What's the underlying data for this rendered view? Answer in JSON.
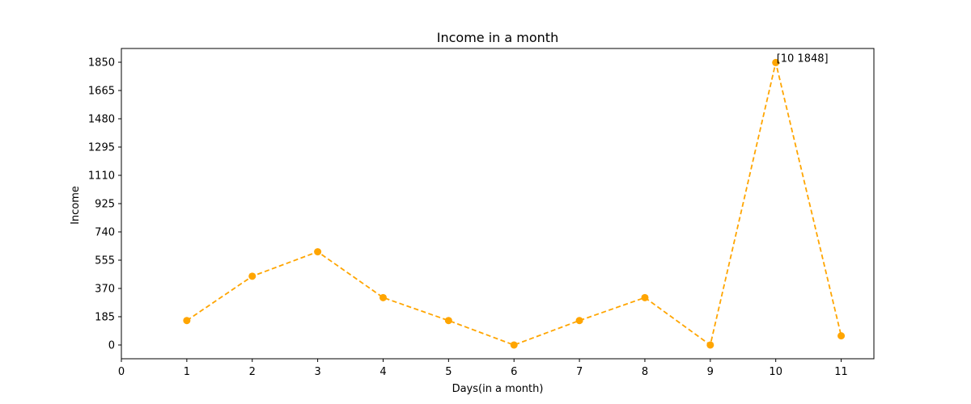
{
  "chart_data": {
    "type": "line",
    "title": "Income in a month",
    "xlabel": "Days(in a month)",
    "ylabel": "Income",
    "x": [
      1,
      2,
      3,
      4,
      5,
      6,
      7,
      8,
      9,
      10,
      11
    ],
    "series": [
      {
        "values": [
          160,
          450,
          610,
          310,
          160,
          0,
          160,
          310,
          0,
          1848,
          60
        ]
      }
    ],
    "xlim": [
      0,
      11.5
    ],
    "ylim": [
      -90,
      1940
    ],
    "xticks": [
      0,
      1,
      2,
      3,
      4,
      5,
      6,
      7,
      8,
      9,
      10,
      11
    ],
    "yticks": [
      0,
      185,
      370,
      555,
      740,
      925,
      1110,
      1295,
      1480,
      1665,
      1850
    ],
    "line_style": "dashed",
    "marker": "circle",
    "color": "#ffa500",
    "grid": false,
    "annotations": [
      {
        "x": 10,
        "y": 1848,
        "text": "[10 1848]"
      }
    ]
  }
}
